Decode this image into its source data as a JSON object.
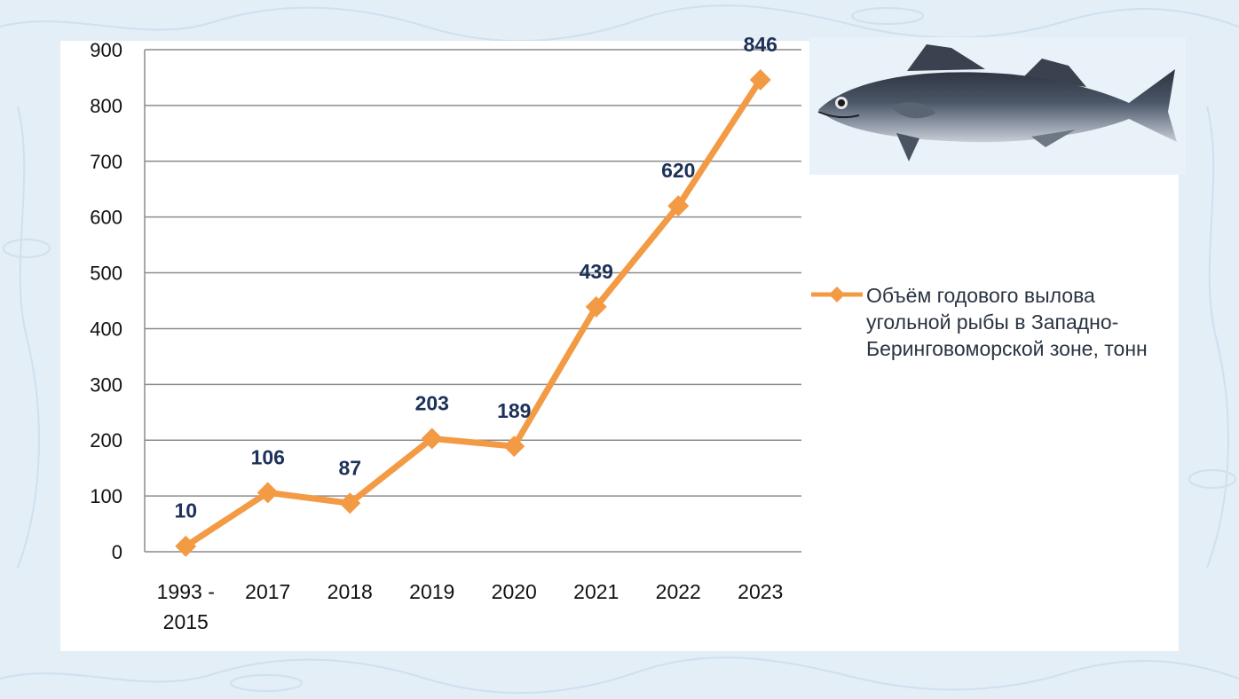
{
  "colors": {
    "series": "#f39a45",
    "data_label": "#1d3159",
    "grid": "#8c8c8c",
    "background": "#e3eef7"
  },
  "chart_data": {
    "type": "line",
    "categories": [
      "1993 - 2015",
      "2017",
      "2018",
      "2019",
      "2020",
      "2021",
      "2022",
      "2023"
    ],
    "series": [
      {
        "name": "Объём годового вылова угольной рыбы в Западно-Беринговоморской зоне, тонн",
        "values": [
          10,
          106,
          87,
          203,
          189,
          439,
          620,
          846
        ]
      }
    ],
    "ylim": [
      0,
      900
    ],
    "yticks": [
      0,
      100,
      200,
      300,
      400,
      500,
      600,
      700,
      800,
      900
    ],
    "xlabel": "",
    "ylabel": "",
    "grid": true,
    "legend": "right",
    "marker": "diamond",
    "data_labels": true
  },
  "image": {
    "icon": "sablefish-illustration"
  }
}
